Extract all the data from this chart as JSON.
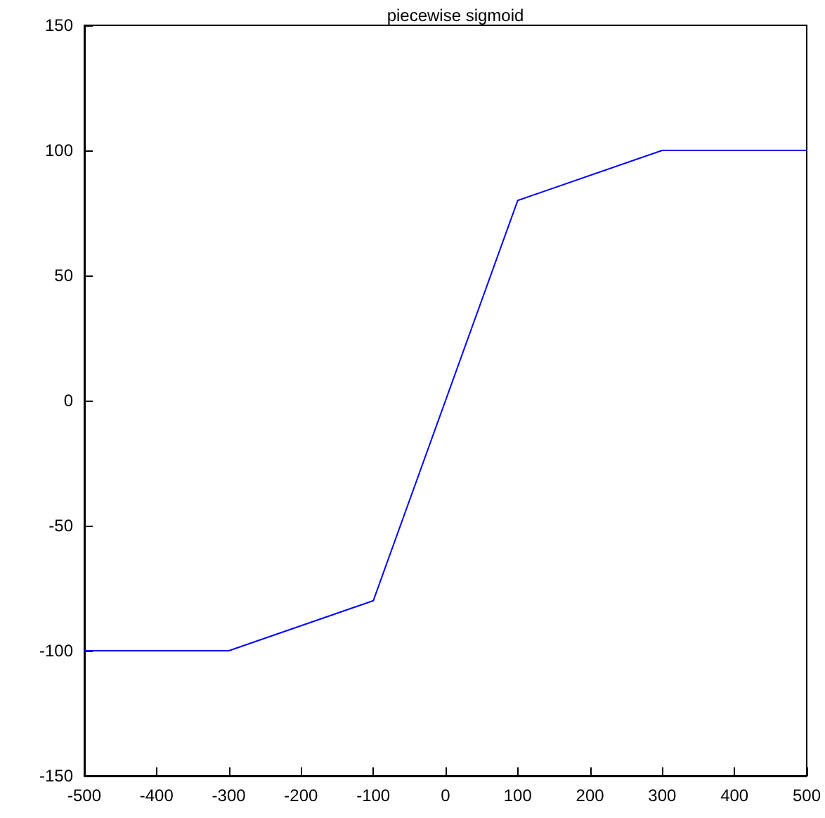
{
  "chart_data": {
    "type": "line",
    "title": "piecewise sigmoid",
    "x": [
      -500,
      -300,
      -100,
      100,
      300,
      500
    ],
    "series": [
      {
        "color": "#0000ff",
        "values": [
          -100,
          -100,
          -80,
          80,
          100,
          100
        ]
      }
    ],
    "xlim": [
      -500,
      500
    ],
    "xticks": [
      -500,
      -400,
      -300,
      -200,
      -100,
      0,
      100,
      200,
      300,
      400,
      500
    ],
    "ylim": [
      -150,
      150
    ],
    "yticks": [
      -150,
      -100,
      -50,
      0,
      50,
      100,
      150
    ],
    "grid": false,
    "marker": "none",
    "line_style": "solid"
  }
}
